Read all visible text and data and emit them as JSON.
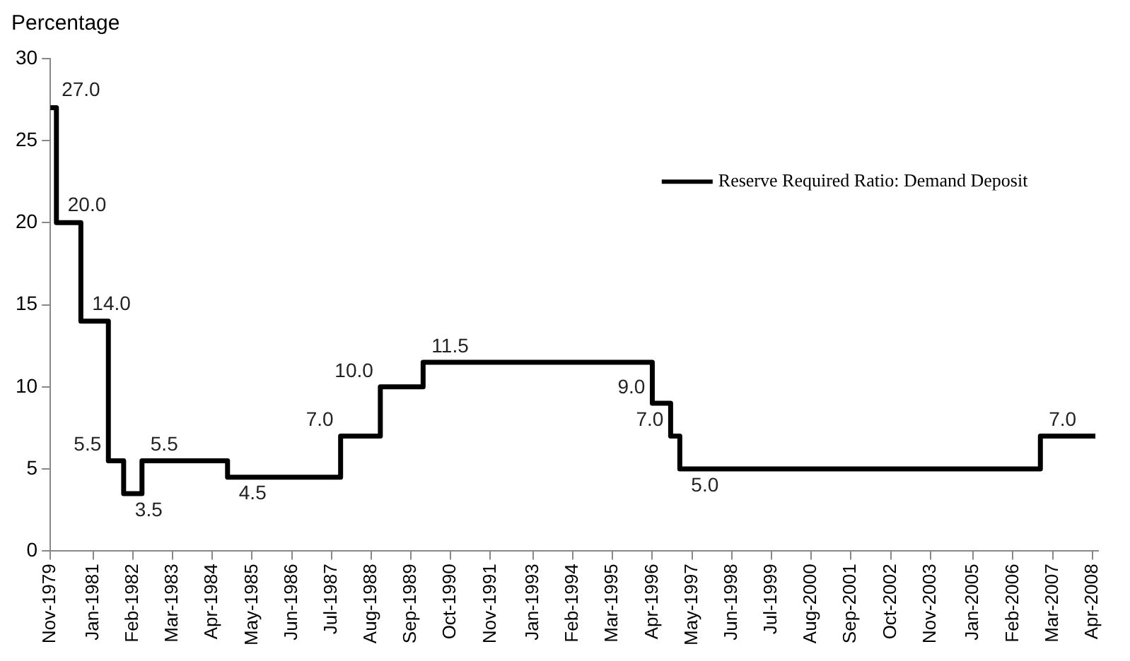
{
  "chart_data": {
    "type": "step",
    "ylabel": "Percentage",
    "x": [
      "1979-11",
      "1980-01",
      "1980-09",
      "1981-06",
      "1981-11",
      "1982-05",
      "1984-09",
      "1987-10",
      "1988-11",
      "1990-01",
      "1996-04",
      "1996-10",
      "1997-01",
      "2006-11",
      "2008-05"
    ],
    "series": [
      {
        "name": "Reserve Required Ratio: Demand Deposit",
        "color": "#000000",
        "values": [
          27.0,
          20.0,
          14.0,
          5.5,
          3.5,
          5.5,
          4.5,
          7.0,
          10.0,
          11.5,
          9.0,
          7.0,
          5.0,
          7.0,
          7.0
        ],
        "value_labels": [
          "27.0",
          "20.0",
          "14.0",
          "5.5",
          "3.5",
          "5.5",
          "4.5",
          "7.0",
          "10.0",
          "11.5",
          "9.0",
          "7.0",
          "5.0",
          "7.0",
          null
        ]
      }
    ],
    "ylim": [
      0,
      30
    ],
    "yticks": [
      0,
      5,
      10,
      15,
      20,
      25,
      30
    ],
    "xlim": [
      "1979-11",
      "2008-06"
    ],
    "xticks": [
      {
        "value": "1979-11",
        "label": "Nov-1979"
      },
      {
        "value": "1981-01",
        "label": "Jan-1981"
      },
      {
        "value": "1982-02",
        "label": "Feb-1982"
      },
      {
        "value": "1983-03",
        "label": "Mar-1983"
      },
      {
        "value": "1984-04",
        "label": "Apr-1984"
      },
      {
        "value": "1985-05",
        "label": "May-1985"
      },
      {
        "value": "1986-06",
        "label": "Jun-1986"
      },
      {
        "value": "1987-07",
        "label": "Jul-1987"
      },
      {
        "value": "1988-08",
        "label": "Aug-1988"
      },
      {
        "value": "1989-09",
        "label": "Sep-1989"
      },
      {
        "value": "1990-10",
        "label": "Oct-1990"
      },
      {
        "value": "1991-11",
        "label": "Nov-1991"
      },
      {
        "value": "1993-01",
        "label": "Jan-1993"
      },
      {
        "value": "1994-02",
        "label": "Feb-1994"
      },
      {
        "value": "1995-03",
        "label": "Mar-1995"
      },
      {
        "value": "1996-04",
        "label": "Apr-1996"
      },
      {
        "value": "1997-05",
        "label": "May-1997"
      },
      {
        "value": "1998-06",
        "label": "Jun-1998"
      },
      {
        "value": "1999-07",
        "label": "Jul-1999"
      },
      {
        "value": "2000-08",
        "label": "Aug-2000"
      },
      {
        "value": "2001-09",
        "label": "Sep-2001"
      },
      {
        "value": "2002-10",
        "label": "Oct-2002"
      },
      {
        "value": "2003-11",
        "label": "Nov-2003"
      },
      {
        "value": "2005-01",
        "label": "Jan-2005"
      },
      {
        "value": "2006-02",
        "label": "Feb-2006"
      },
      {
        "value": "2007-03",
        "label": "Mar-2007"
      },
      {
        "value": "2008-04",
        "label": "Apr-2008"
      }
    ],
    "grid": false,
    "legend": "top right",
    "line_style": "solid",
    "marker": "none"
  }
}
